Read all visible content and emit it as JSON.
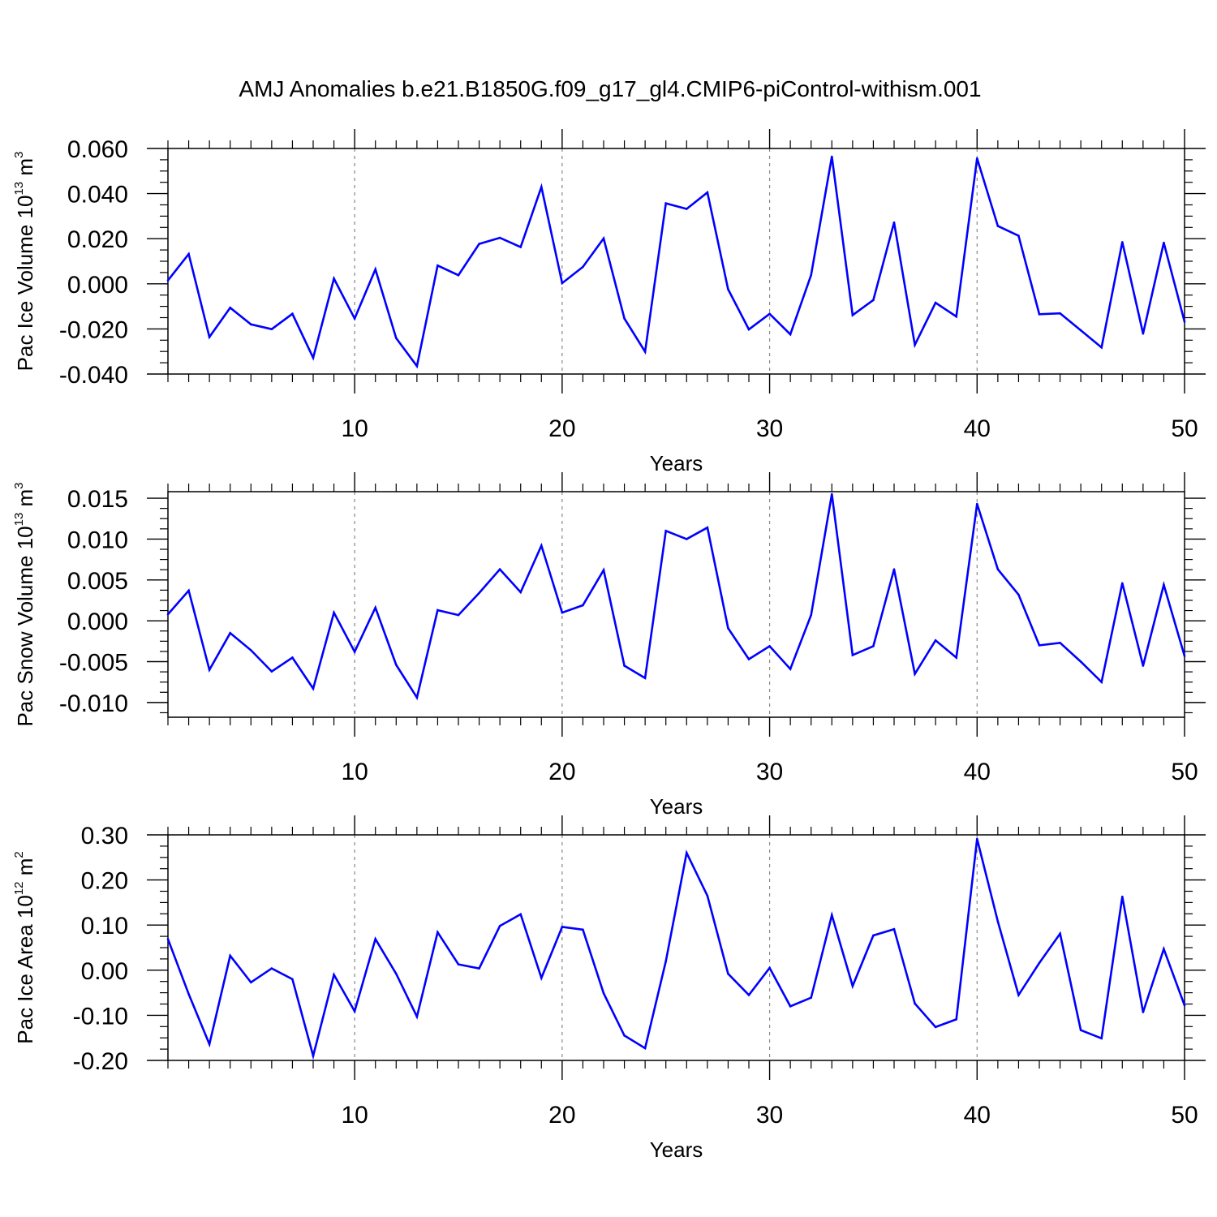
{
  "title": "AMJ Anomalies b.e21.B1850G.f09_g17_gl4.CMIP6-piControl-withism.001",
  "colors": {
    "line": "#0000ff",
    "axis": "#000000",
    "grid": "#888888"
  },
  "chart_data": [
    {
      "type": "line",
      "ylabel": {
        "text": "Pac Ice Volume 10",
        "exp": "13",
        "unit": " m",
        "unit_exp": "3"
      },
      "xlabel": "Years",
      "xlim": [
        1,
        50
      ],
      "ylim": [
        -0.04,
        0.06
      ],
      "yticks": [
        -0.04,
        -0.02,
        0.0,
        0.02,
        0.04,
        0.06
      ],
      "ytick_labels": [
        "-0.040",
        "-0.020",
        "0.000",
        "0.020",
        "0.040",
        "0.060"
      ],
      "xticks": [
        10,
        20,
        30,
        40,
        50
      ],
      "xtick_labels": [
        "10",
        "20",
        "30",
        "40",
        "50"
      ],
      "x": [
        1,
        2,
        3,
        4,
        5,
        6,
        7,
        8,
        9,
        10,
        11,
        12,
        13,
        14,
        15,
        16,
        17,
        18,
        19,
        20,
        21,
        22,
        23,
        24,
        25,
        26,
        27,
        28,
        29,
        30,
        31,
        32,
        33,
        34,
        35,
        36,
        37,
        38,
        39,
        40,
        41,
        42,
        43,
        44,
        45,
        46,
        47,
        48,
        49,
        50
      ],
      "values": [
        0.0015,
        0.0132,
        -0.0236,
        -0.0106,
        -0.018,
        -0.0201,
        -0.0133,
        -0.0328,
        0.0023,
        -0.0154,
        0.0064,
        -0.0241,
        -0.0365,
        0.0081,
        0.0038,
        0.0177,
        0.0204,
        0.0163,
        0.0429,
        0.0003,
        0.0075,
        0.0201,
        -0.0154,
        -0.0301,
        0.0357,
        0.0332,
        0.0405,
        -0.0024,
        -0.0202,
        -0.0133,
        -0.0224,
        0.0039,
        0.0564,
        -0.0139,
        -0.0072,
        0.0272,
        -0.0271,
        -0.0084,
        -0.0145,
        0.0556,
        0.0256,
        0.0213,
        -0.0135,
        -0.0131,
        -0.0206,
        -0.0282,
        0.0185,
        -0.0221,
        0.0182,
        -0.0168
      ]
    },
    {
      "type": "line",
      "ylabel": {
        "text": "Pac Snow Volume 10",
        "exp": "13",
        "unit": " m",
        "unit_exp": "3"
      },
      "xlabel": "Years",
      "xlim": [
        1,
        50
      ],
      "ylim": [
        -0.0118,
        0.0158
      ],
      "yticks": [
        -0.01,
        -0.005,
        0.0,
        0.005,
        0.01,
        0.015
      ],
      "ytick_labels": [
        "-0.010",
        "-0.005",
        "0.000",
        "0.005",
        "0.010",
        "0.015"
      ],
      "xticks": [
        10,
        20,
        30,
        40,
        50
      ],
      "xtick_labels": [
        "10",
        "20",
        "30",
        "40",
        "50"
      ],
      "x": [
        1,
        2,
        3,
        4,
        5,
        6,
        7,
        8,
        9,
        10,
        11,
        12,
        13,
        14,
        15,
        16,
        17,
        18,
        19,
        20,
        21,
        22,
        23,
        24,
        25,
        26,
        27,
        28,
        29,
        30,
        31,
        32,
        33,
        34,
        35,
        36,
        37,
        38,
        39,
        40,
        41,
        42,
        43,
        44,
        45,
        46,
        47,
        48,
        49,
        50
      ],
      "values": [
        0.0008,
        0.0037,
        -0.006,
        -0.0015,
        -0.0036,
        -0.0062,
        -0.0045,
        -0.0083,
        0.001,
        -0.0038,
        0.0016,
        -0.0054,
        -0.0094,
        0.0013,
        0.0007,
        0.0034,
        0.0063,
        0.0035,
        0.0092,
        0.001,
        0.0019,
        0.0062,
        -0.0055,
        -0.007,
        0.011,
        0.01,
        0.0114,
        -0.0009,
        -0.0047,
        -0.0031,
        -0.0059,
        0.0007,
        0.0155,
        -0.0042,
        -0.0031,
        0.0063,
        -0.0065,
        -0.0024,
        -0.0045,
        0.0143,
        0.0063,
        0.0032,
        -0.003,
        -0.0027,
        -0.005,
        -0.0075,
        0.0046,
        -0.0055,
        0.0044,
        -0.0043
      ]
    },
    {
      "type": "line",
      "ylabel": {
        "text": "Pac Ice Area 10",
        "exp": "12",
        "unit": " m",
        "unit_exp": "2"
      },
      "xlabel": "Years",
      "xlim": [
        1,
        50
      ],
      "ylim": [
        -0.2,
        0.3
      ],
      "yticks": [
        -0.2,
        -0.1,
        0.0,
        0.1,
        0.2,
        0.3
      ],
      "ytick_labels": [
        "-0.20",
        "-0.10",
        "0.00",
        "0.10",
        "0.20",
        "0.30"
      ],
      "xticks": [
        10,
        20,
        30,
        40,
        50
      ],
      "xtick_labels": [
        "10",
        "20",
        "30",
        "40",
        "50"
      ],
      "x": [
        1,
        2,
        3,
        4,
        5,
        6,
        7,
        8,
        9,
        10,
        11,
        12,
        13,
        14,
        15,
        16,
        17,
        18,
        19,
        20,
        21,
        22,
        23,
        24,
        25,
        26,
        27,
        28,
        29,
        30,
        31,
        32,
        33,
        34,
        35,
        36,
        37,
        38,
        39,
        40,
        41,
        42,
        43,
        44,
        45,
        46,
        47,
        48,
        49,
        50
      ],
      "values": [
        0.069,
        -0.053,
        -0.164,
        0.032,
        -0.027,
        0.004,
        -0.02,
        -0.19,
        -0.01,
        -0.091,
        0.069,
        -0.008,
        -0.103,
        0.084,
        0.013,
        0.004,
        0.098,
        0.124,
        -0.017,
        0.096,
        0.09,
        -0.051,
        -0.145,
        -0.173,
        0.02,
        0.26,
        0.165,
        -0.008,
        -0.055,
        0.005,
        -0.08,
        -0.061,
        0.122,
        -0.035,
        0.077,
        0.091,
        -0.074,
        -0.126,
        -0.109,
        0.291,
        0.108,
        -0.055,
        0.016,
        0.081,
        -0.133,
        -0.151,
        0.163,
        -0.093,
        0.047,
        -0.078
      ]
    }
  ]
}
